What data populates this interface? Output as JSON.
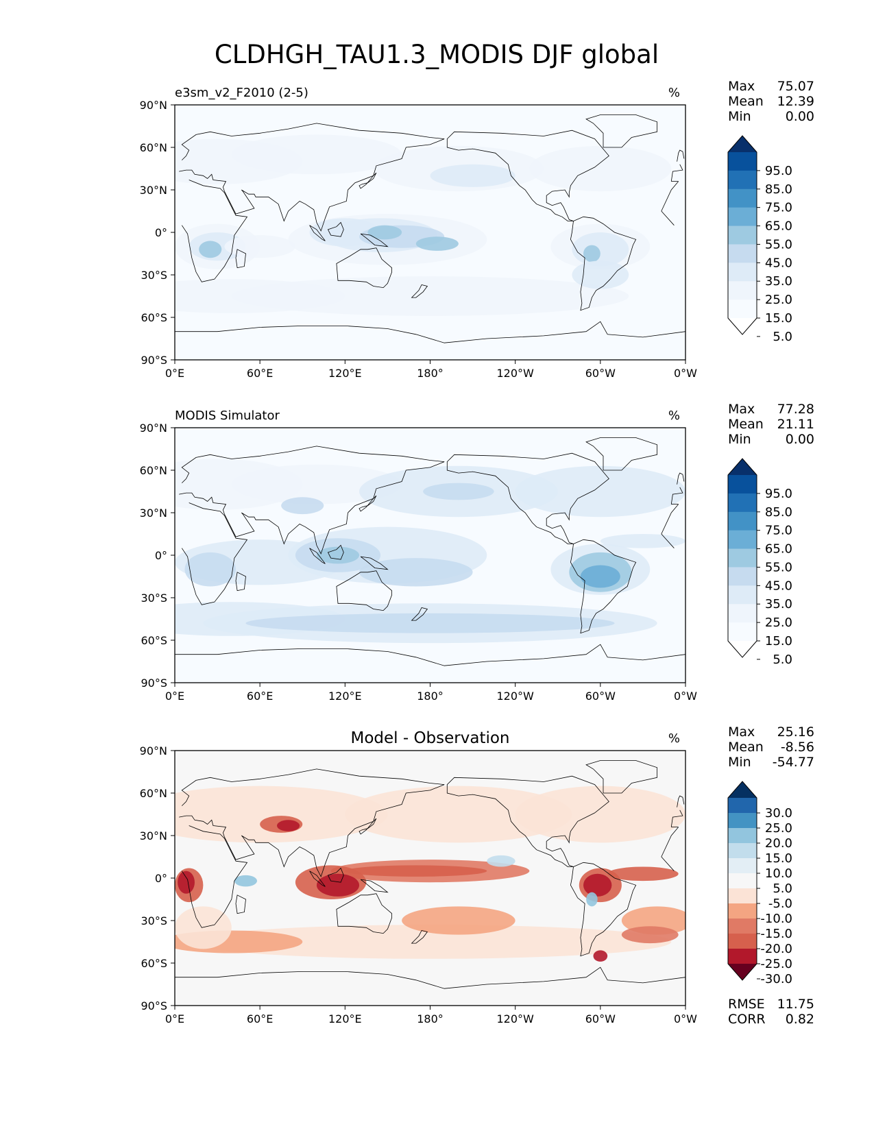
{
  "title": "CLDHGH_TAU1.3_MODIS DJF global",
  "x_ticks": [
    "0°E",
    "60°E",
    "120°E",
    "180°",
    "120°W",
    "60°W",
    "0°W"
  ],
  "y_ticks": [
    "90°N",
    "60°N",
    "30°N",
    "0°",
    "30°S",
    "60°S",
    "90°S"
  ],
  "panels": [
    {
      "left_title": "e3sm_v2_F2010 (2-5)",
      "center_title": "",
      "units": "%",
      "stats": [
        {
          "label": "Max",
          "value": "75.07"
        },
        {
          "label": "Mean",
          "value": "12.39"
        },
        {
          "label": "Min",
          "value": "0.00"
        }
      ],
      "colorbar": {
        "labels": [
          "95.0",
          "85.0",
          "75.0",
          "65.0",
          "55.0",
          "45.0",
          "35.0",
          "25.0",
          "15.0",
          "5.0"
        ],
        "colors": [
          "#08306b",
          "#08519c",
          "#2171b5",
          "#4292c6",
          "#6baed6",
          "#9ecae1",
          "#c6dbef",
          "#deebf7",
          "#eff5fc",
          "#f7fbff",
          "#ffffff"
        ]
      }
    },
    {
      "left_title": "MODIS Simulator",
      "center_title": "",
      "units": "%",
      "stats": [
        {
          "label": "Max",
          "value": "77.28"
        },
        {
          "label": "Mean",
          "value": "21.11"
        },
        {
          "label": "Min",
          "value": "0.00"
        }
      ],
      "colorbar": {
        "labels": [
          "95.0",
          "85.0",
          "75.0",
          "65.0",
          "55.0",
          "45.0",
          "35.0",
          "25.0",
          "15.0",
          "5.0"
        ],
        "colors": [
          "#08306b",
          "#08519c",
          "#2171b5",
          "#4292c6",
          "#6baed6",
          "#9ecae1",
          "#c6dbef",
          "#deebf7",
          "#eff5fc",
          "#f7fbff",
          "#ffffff"
        ]
      }
    },
    {
      "left_title": "",
      "center_title": "Model - Observation",
      "units": "%",
      "stats": [
        {
          "label": "Max",
          "value": "25.16"
        },
        {
          "label": "Mean",
          "value": "-8.56"
        },
        {
          "label": "Min",
          "value": "-54.77"
        }
      ],
      "colorbar": {
        "labels": [
          "30.0",
          "25.0",
          "20.0",
          "15.0",
          "10.0",
          "5.0",
          "-5.0",
          "-10.0",
          "-15.0",
          "-20.0",
          "-25.0",
          "-30.0"
        ],
        "colors": [
          "#053061",
          "#2166ac",
          "#4393c3",
          "#92c5de",
          "#c2ddec",
          "#e3eef5",
          "#f7f7f7",
          "#fbe3d6",
          "#f4a582",
          "#e07a65",
          "#d6604d",
          "#b2182b",
          "#67001f"
        ]
      },
      "extra_stats": [
        {
          "label": "RMSE",
          "value": "11.75"
        },
        {
          "label": "CORR",
          "value": "0.82"
        }
      ]
    }
  ]
}
